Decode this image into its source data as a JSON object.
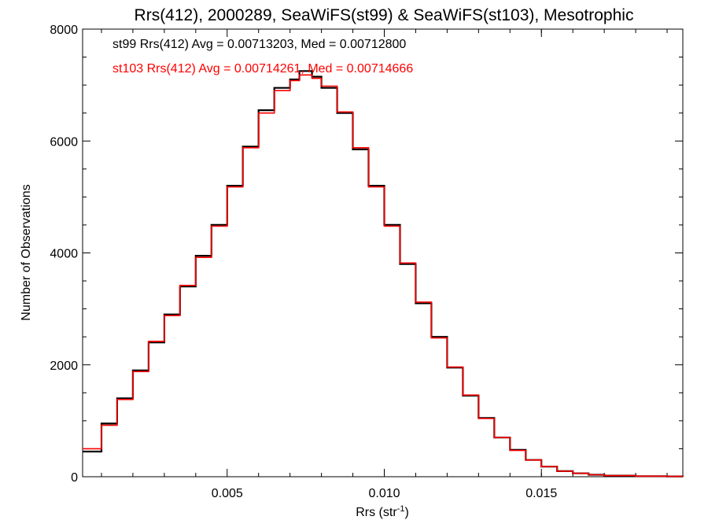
{
  "chart_data": {
    "type": "line",
    "step": true,
    "title": "Rrs(412), 2000289, SeaWiFS(st99) & SeaWiFS(st103), Mesotrophic",
    "xlabel": "Rrs (str",
    "xlabel_sup": "-1",
    "xlabel_end": ")",
    "ylabel": "Number of Observations",
    "xlim": [
      0.0004,
      0.0195
    ],
    "ylim": [
      0,
      8000
    ],
    "x_ticks": [
      0.005,
      0.01,
      0.015
    ],
    "x_tick_labels": [
      "0.005",
      "0.010",
      "0.015"
    ],
    "y_ticks": [
      0,
      2000,
      4000,
      6000,
      8000
    ],
    "y_tick_labels": [
      "0",
      "2000",
      "4000",
      "6000",
      "8000"
    ],
    "grid": false,
    "legend_position": "top-left",
    "series": [
      {
        "name": "st99 Rrs(412) Avg = 0.00713203, Med = 0.00712800",
        "color": "#000000",
        "x": [
          0.0004,
          0.001,
          0.0015,
          0.002,
          0.0025,
          0.003,
          0.0035,
          0.004,
          0.0045,
          0.005,
          0.0055,
          0.006,
          0.0065,
          0.007,
          0.0073,
          0.0077,
          0.008,
          0.0085,
          0.009,
          0.0095,
          0.01,
          0.0105,
          0.011,
          0.0115,
          0.012,
          0.0125,
          0.013,
          0.0135,
          0.014,
          0.0145,
          0.015,
          0.0155,
          0.016,
          0.0165,
          0.017,
          0.018,
          0.019,
          0.0195
        ],
        "y": [
          450,
          950,
          1400,
          1900,
          2400,
          2900,
          3400,
          3950,
          4500,
          5200,
          5900,
          6550,
          6950,
          7100,
          7250,
          7150,
          6950,
          6500,
          5850,
          5200,
          4500,
          3800,
          3100,
          2500,
          1950,
          1450,
          1050,
          700,
          480,
          300,
          180,
          100,
          60,
          35,
          20,
          10,
          5,
          3
        ]
      },
      {
        "name": "st103 Rrs(412) Avg = 0.00714261, Med = 0.00714666",
        "color": "#ff0000",
        "x": [
          0.0004,
          0.001,
          0.0015,
          0.002,
          0.0025,
          0.003,
          0.0035,
          0.004,
          0.0045,
          0.005,
          0.0055,
          0.006,
          0.0065,
          0.007,
          0.0073,
          0.0077,
          0.008,
          0.0085,
          0.009,
          0.0095,
          0.01,
          0.0105,
          0.011,
          0.0115,
          0.012,
          0.0125,
          0.013,
          0.0135,
          0.014,
          0.0145,
          0.015,
          0.0155,
          0.016,
          0.0165,
          0.017,
          0.018,
          0.019,
          0.0195
        ],
        "y": [
          500,
          920,
          1380,
          1880,
          2420,
          2880,
          3420,
          3920,
          4480,
          5180,
          5880,
          6500,
          6900,
          7080,
          7180,
          7120,
          6980,
          6520,
          5880,
          5180,
          4480,
          3820,
          3120,
          2480,
          1960,
          1460,
          1040,
          700,
          470,
          300,
          180,
          100,
          60,
          35,
          20,
          10,
          5,
          3
        ]
      }
    ]
  }
}
